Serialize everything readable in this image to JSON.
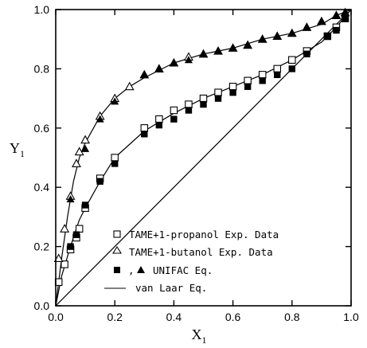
{
  "chart_data": {
    "type": "scatter",
    "xlabel": "X",
    "xlabel_sub": "1",
    "ylabel": "Y",
    "ylabel_sub": "1",
    "xlim": [
      0.0,
      1.0
    ],
    "ylim": [
      0.0,
      1.0
    ],
    "xticks": [
      0.0,
      0.2,
      0.4,
      0.6,
      0.8,
      1.0
    ],
    "yticks": [
      0.0,
      0.2,
      0.4,
      0.6,
      0.8,
      1.0
    ],
    "xtick_labels": [
      "0.0",
      "0.2",
      "0.4",
      "0.6",
      "0.8",
      "1.0"
    ],
    "ytick_labels": [
      "0.0",
      "0.2",
      "0.4",
      "0.6",
      "0.8",
      "1.0"
    ],
    "grid": false,
    "legend_position": "bottom-right",
    "legend": [
      {
        "prefix": "",
        "text": "TAME+1-propanol Exp. Data",
        "marker": "open-square"
      },
      {
        "prefix": "",
        "text": "TAME+1-butanol Exp. Data",
        "marker": "open-triangle"
      },
      {
        "prefix": ",",
        "text": "UNIFAC Eq.",
        "marker": "filled-square+filled-triangle"
      },
      {
        "prefix": "",
        "text": "van Laar Eq.",
        "marker": "line"
      }
    ],
    "series": [
      {
        "name": "TAME+1-propanol Exp. Data",
        "marker": "open-square",
        "x": [
          0.01,
          0.03,
          0.05,
          0.07,
          0.08,
          0.1,
          0.15,
          0.2,
          0.3,
          0.35,
          0.4,
          0.45,
          0.5,
          0.55,
          0.6,
          0.65,
          0.7,
          0.75,
          0.8,
          0.85,
          0.92,
          0.95,
          0.98
        ],
        "y": [
          0.08,
          0.14,
          0.19,
          0.23,
          0.26,
          0.33,
          0.43,
          0.5,
          0.6,
          0.63,
          0.66,
          0.68,
          0.7,
          0.72,
          0.74,
          0.76,
          0.78,
          0.8,
          0.83,
          0.86,
          0.91,
          0.94,
          0.97
        ]
      },
      {
        "name": "TAME+1-butanol Exp. Data",
        "marker": "open-triangle",
        "x": [
          0.01,
          0.03,
          0.05,
          0.07,
          0.08,
          0.1,
          0.15,
          0.2,
          0.25,
          0.3,
          0.35,
          0.4,
          0.45,
          0.5,
          0.55,
          0.6,
          0.65,
          0.7,
          0.75,
          0.8,
          0.85,
          0.9,
          0.95,
          0.98
        ],
        "y": [
          0.16,
          0.26,
          0.37,
          0.48,
          0.52,
          0.56,
          0.64,
          0.7,
          0.74,
          0.78,
          0.8,
          0.82,
          0.84,
          0.85,
          0.86,
          0.87,
          0.88,
          0.9,
          0.91,
          0.92,
          0.94,
          0.96,
          0.98,
          0.99
        ]
      },
      {
        "name": "UNIFAC Eq. (TAME+1-propanol)",
        "marker": "filled-square",
        "x": [
          0.05,
          0.07,
          0.1,
          0.15,
          0.2,
          0.3,
          0.35,
          0.4,
          0.45,
          0.5,
          0.55,
          0.6,
          0.65,
          0.7,
          0.75,
          0.8,
          0.85,
          0.92,
          0.95,
          0.98
        ],
        "y": [
          0.2,
          0.24,
          0.34,
          0.42,
          0.48,
          0.58,
          0.61,
          0.63,
          0.66,
          0.68,
          0.7,
          0.72,
          0.74,
          0.76,
          0.78,
          0.8,
          0.85,
          0.91,
          0.93,
          0.97
        ]
      },
      {
        "name": "UNIFAC Eq. (TAME+1-butanol)",
        "marker": "filled-triangle",
        "x": [
          0.05,
          0.1,
          0.15,
          0.2,
          0.3,
          0.35,
          0.4,
          0.45,
          0.5,
          0.55,
          0.6,
          0.65,
          0.7,
          0.75,
          0.8,
          0.85,
          0.9,
          0.95,
          0.98
        ],
        "y": [
          0.36,
          0.53,
          0.63,
          0.69,
          0.78,
          0.8,
          0.82,
          0.83,
          0.85,
          0.86,
          0.87,
          0.88,
          0.9,
          0.91,
          0.92,
          0.94,
          0.96,
          0.98,
          0.99
        ]
      },
      {
        "name": "van Laar Eq. (TAME+1-propanol)",
        "marker": "line",
        "x": [
          0.0,
          0.02,
          0.05,
          0.08,
          0.1,
          0.15,
          0.2,
          0.3,
          0.4,
          0.5,
          0.6,
          0.7,
          0.8,
          0.9,
          0.95,
          1.0
        ],
        "y": [
          0.0,
          0.1,
          0.2,
          0.29,
          0.33,
          0.42,
          0.5,
          0.59,
          0.65,
          0.7,
          0.74,
          0.78,
          0.83,
          0.89,
          0.94,
          1.0
        ]
      },
      {
        "name": "van Laar Eq. (TAME+1-butanol)",
        "marker": "line",
        "x": [
          0.0,
          0.02,
          0.04,
          0.06,
          0.08,
          0.1,
          0.15,
          0.2,
          0.25,
          0.3,
          0.4,
          0.5,
          0.6,
          0.7,
          0.8,
          0.9,
          0.95,
          1.0
        ],
        "y": [
          0.0,
          0.16,
          0.3,
          0.42,
          0.5,
          0.55,
          0.64,
          0.7,
          0.74,
          0.77,
          0.82,
          0.85,
          0.87,
          0.9,
          0.92,
          0.95,
          0.98,
          1.0
        ]
      },
      {
        "name": "diagonal",
        "marker": "line",
        "x": [
          0.0,
          1.0
        ],
        "y": [
          0.0,
          1.0
        ]
      }
    ]
  }
}
